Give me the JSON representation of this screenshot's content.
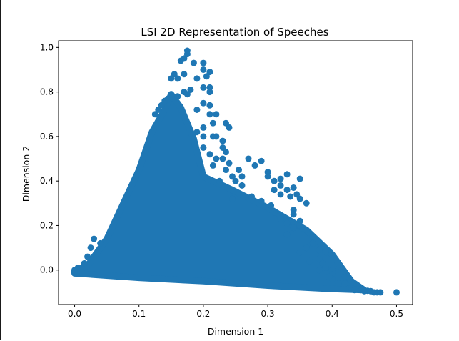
{
  "chart_data": {
    "type": "scatter",
    "title": "LSI 2D Representation of Speeches",
    "xlabel": "Dimension 1",
    "ylabel": "Dimension 2",
    "xlim": [
      -0.025,
      0.525
    ],
    "ylim": [
      -0.155,
      1.03
    ],
    "xticks": [
      0.0,
      0.1,
      0.2,
      0.3,
      0.4,
      0.5
    ],
    "xtick_labels": [
      "0.0",
      "0.1",
      "0.2",
      "0.3",
      "0.4",
      "0.5"
    ],
    "yticks": [
      0.0,
      0.2,
      0.4,
      0.6,
      0.8,
      1.0
    ],
    "ytick_labels": [
      "0.0",
      "0.2",
      "0.4",
      "0.6",
      "0.8",
      "1.0"
    ],
    "grid": false,
    "marker_color": "#1f77b4",
    "dense_region_polygon": [
      [
        0.0,
        -0.005
      ],
      [
        0.02,
        0.02
      ],
      [
        0.05,
        0.14
      ],
      [
        0.1,
        0.45
      ],
      [
        0.12,
        0.62
      ],
      [
        0.14,
        0.72
      ],
      [
        0.15,
        0.79
      ],
      [
        0.165,
        0.73
      ],
      [
        0.185,
        0.59
      ],
      [
        0.2,
        0.42
      ],
      [
        0.245,
        0.36
      ],
      [
        0.3,
        0.28
      ],
      [
        0.36,
        0.18
      ],
      [
        0.4,
        0.07
      ],
      [
        0.43,
        -0.05
      ],
      [
        0.45,
        -0.09
      ],
      [
        0.4,
        -0.085
      ],
      [
        0.3,
        -0.07
      ],
      [
        0.2,
        -0.05
      ],
      [
        0.1,
        -0.035
      ],
      [
        0.0,
        -0.015
      ]
    ],
    "outliers": [
      [
        0.175,
        0.985
      ],
      [
        0.175,
        0.97
      ],
      [
        0.17,
        0.95
      ],
      [
        0.165,
        0.94
      ],
      [
        0.185,
        0.93
      ],
      [
        0.2,
        0.93
      ],
      [
        0.2,
        0.9
      ],
      [
        0.205,
        0.87
      ],
      [
        0.21,
        0.89
      ],
      [
        0.17,
        0.88
      ],
      [
        0.16,
        0.86
      ],
      [
        0.155,
        0.88
      ],
      [
        0.15,
        0.86
      ],
      [
        0.19,
        0.86
      ],
      [
        0.2,
        0.82
      ],
      [
        0.21,
        0.82
      ],
      [
        0.21,
        0.8
      ],
      [
        0.18,
        0.81
      ],
      [
        0.175,
        0.79
      ],
      [
        0.17,
        0.8
      ],
      [
        0.16,
        0.78
      ],
      [
        0.21,
        0.74
      ],
      [
        0.21,
        0.7
      ],
      [
        0.19,
        0.72
      ],
      [
        0.2,
        0.75
      ],
      [
        0.2,
        0.64
      ],
      [
        0.215,
        0.66
      ],
      [
        0.22,
        0.7
      ],
      [
        0.235,
        0.66
      ],
      [
        0.24,
        0.64
      ],
      [
        0.2,
        0.6
      ],
      [
        0.215,
        0.6
      ],
      [
        0.23,
        0.58
      ],
      [
        0.23,
        0.55
      ],
      [
        0.235,
        0.53
      ],
      [
        0.21,
        0.52
      ],
      [
        0.23,
        0.5
      ],
      [
        0.24,
        0.48
      ],
      [
        0.235,
        0.45
      ],
      [
        0.245,
        0.42
      ],
      [
        0.25,
        0.4
      ],
      [
        0.26,
        0.42
      ],
      [
        0.27,
        0.5
      ],
      [
        0.28,
        0.47
      ],
      [
        0.29,
        0.49
      ],
      [
        0.3,
        0.44
      ],
      [
        0.3,
        0.42
      ],
      [
        0.31,
        0.4
      ],
      [
        0.32,
        0.41
      ],
      [
        0.33,
        0.43
      ],
      [
        0.32,
        0.38
      ],
      [
        0.33,
        0.36
      ],
      [
        0.34,
        0.37
      ],
      [
        0.345,
        0.34
      ],
      [
        0.335,
        0.33
      ],
      [
        0.35,
        0.32
      ],
      [
        0.36,
        0.3
      ],
      [
        0.32,
        0.34
      ],
      [
        0.31,
        0.36
      ],
      [
        0.35,
        0.41
      ],
      [
        0.34,
        0.27
      ],
      [
        0.34,
        0.25
      ],
      [
        0.35,
        0.22
      ],
      [
        0.35,
        0.2
      ],
      [
        0.34,
        0.19
      ],
      [
        0.33,
        0.16
      ],
      [
        0.36,
        0.18
      ],
      [
        0.37,
        0.15
      ],
      [
        0.37,
        0.12
      ],
      [
        0.36,
        0.1
      ],
      [
        0.38,
        0.09
      ],
      [
        0.39,
        0.08
      ],
      [
        0.38,
        0.05
      ],
      [
        0.385,
        0.03
      ],
      [
        0.39,
        0.01
      ],
      [
        0.4,
        0.0
      ],
      [
        0.4,
        -0.02
      ],
      [
        0.42,
        -0.03
      ],
      [
        0.42,
        -0.06
      ],
      [
        0.43,
        -0.08
      ],
      [
        0.44,
        -0.085
      ],
      [
        0.445,
        -0.09
      ],
      [
        0.455,
        -0.093
      ],
      [
        0.46,
        -0.095
      ],
      [
        0.47,
        -0.1
      ],
      [
        0.475,
        -0.1
      ],
      [
        0.5,
        -0.1
      ],
      [
        0.465,
        -0.1
      ],
      [
        0.45,
        -0.095
      ],
      [
        0.435,
        -0.09
      ],
      [
        0.41,
        -0.06
      ],
      [
        0.4,
        -0.04
      ],
      [
        0.395,
        -0.03
      ],
      [
        0.38,
        0.0
      ],
      [
        0.365,
        0.04
      ],
      [
        0.35,
        0.08
      ],
      [
        0.03,
        0.14
      ],
      [
        0.025,
        0.1
      ],
      [
        0.04,
        0.12
      ],
      [
        0.02,
        0.06
      ],
      [
        0.015,
        0.03
      ],
      [
        0.005,
        0.01
      ],
      [
        0.0,
        0.0
      ],
      [
        0.0,
        -0.005
      ],
      [
        0.135,
        0.74
      ],
      [
        0.14,
        0.76
      ],
      [
        0.145,
        0.77
      ],
      [
        0.13,
        0.72
      ],
      [
        0.125,
        0.7
      ],
      [
        0.22,
        0.6
      ],
      [
        0.2,
        0.55
      ],
      [
        0.19,
        0.62
      ],
      [
        0.255,
        0.45
      ],
      [
        0.245,
        0.32
      ],
      [
        0.26,
        0.38
      ],
      [
        0.225,
        0.4
      ],
      [
        0.215,
        0.47
      ],
      [
        0.22,
        0.5
      ],
      [
        0.275,
        0.33
      ],
      [
        0.29,
        0.31
      ],
      [
        0.305,
        0.29
      ],
      [
        0.31,
        0.26
      ],
      [
        0.32,
        0.23
      ],
      [
        0.33,
        0.21
      ]
    ]
  }
}
